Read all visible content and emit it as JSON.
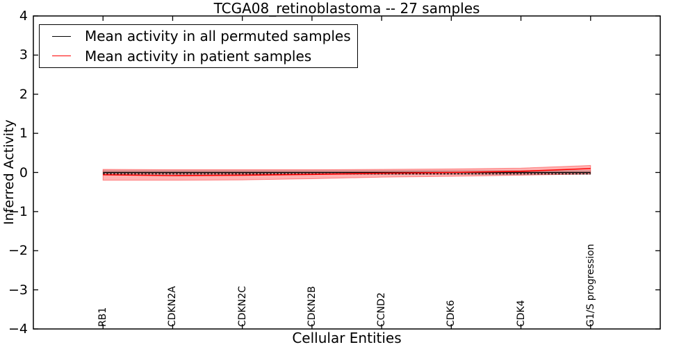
{
  "title": "TCGA08_retinoblastoma -- 27 samples",
  "legend": {
    "items": [
      {
        "label": "Mean activity in all permuted samples",
        "color": "#000000"
      },
      {
        "label": "Mean activity in patient samples",
        "color": "#ff0000"
      }
    ]
  },
  "chart_data": {
    "type": "line",
    "title": "TCGA08_retinoblastoma -- 27 samples",
    "xlabel": "Cellular Entities",
    "ylabel": "Inferred Activity",
    "ylim": [
      -4,
      4
    ],
    "grid": false,
    "legend_position": "upper left",
    "yticks": [
      {
        "value": 4,
        "label": "4"
      },
      {
        "value": 3,
        "label": "3"
      },
      {
        "value": 2,
        "label": "2"
      },
      {
        "value": 1,
        "label": "1"
      },
      {
        "value": 0,
        "label": "0"
      },
      {
        "value": -1,
        "label": "−1"
      },
      {
        "value": -2,
        "label": "−2"
      },
      {
        "value": -3,
        "label": "−3"
      },
      {
        "value": -4,
        "label": "−4"
      }
    ],
    "categories": [
      "RB1",
      "CDKN2A",
      "CDKN2C",
      "CDKN2B",
      "CCND2",
      "CDK6",
      "CDK4",
      "G1/S progression"
    ],
    "series": [
      {
        "name": "Mean activity in all permuted samples",
        "color": "#000000",
        "values": [
          0,
          0,
          0,
          0,
          0,
          0,
          0,
          0
        ],
        "band": {
          "upper": [
            0.05,
            0.05,
            0.05,
            0.05,
            0.05,
            0.05,
            0.05,
            0.05
          ],
          "lower": [
            -0.05,
            -0.05,
            -0.05,
            -0.05,
            -0.05,
            -0.05,
            -0.05,
            -0.05
          ],
          "fill": "rgba(0,0,0,0.16)",
          "edge": "rgba(0,0,0,0.12)"
        }
      },
      {
        "name": "Mean activity in patient samples",
        "color": "#ff0000",
        "values": [
          -0.06,
          -0.08,
          -0.07,
          -0.05,
          -0.02,
          0.0,
          0.03,
          0.1
        ],
        "band": {
          "upper": [
            0.08,
            0.07,
            0.07,
            0.07,
            0.08,
            0.09,
            0.11,
            0.18
          ],
          "lower": [
            -0.2,
            -0.2,
            -0.19,
            -0.16,
            -0.12,
            -0.1,
            -0.07,
            -0.04
          ],
          "fill": "rgba(255,0,0,0.30)",
          "edge": "rgba(255,0,0,0.40)"
        }
      }
    ],
    "zero_line": {
      "value": 0,
      "style": "dashed",
      "color": "#000000"
    }
  }
}
